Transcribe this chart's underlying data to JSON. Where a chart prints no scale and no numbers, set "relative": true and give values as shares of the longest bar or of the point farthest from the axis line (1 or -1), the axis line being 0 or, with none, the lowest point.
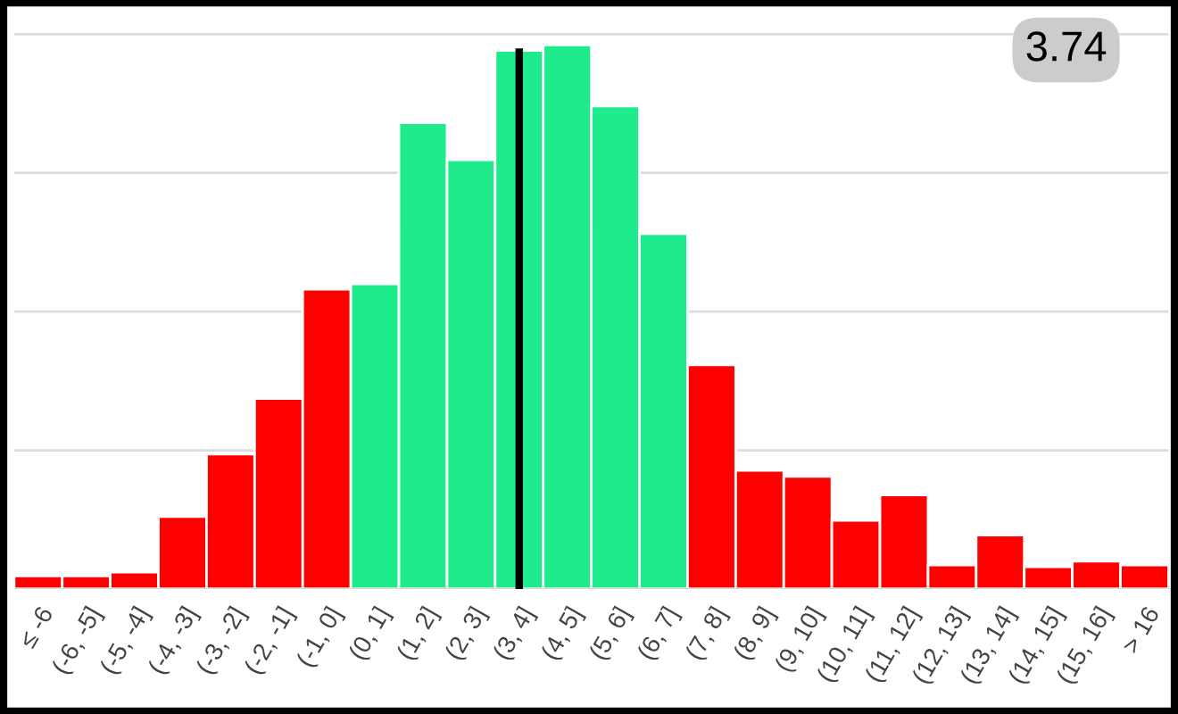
{
  "chart_data": {
    "type": "bar",
    "relative": true,
    "grid": "y",
    "categories": [
      "≤ -6",
      "(-6, -5]",
      "(-5, -4]",
      "(-4, -3]",
      "(-3, -2]",
      "(-2, -1]",
      "(-1, 0]",
      "(0, 1]",
      "(1, 2]",
      "(2, 3]",
      "(3, 4]",
      "(4, 5]",
      "(5, 6]",
      "(6, 7]",
      "(7, 8]",
      "(8, 9]",
      "(9, 10]",
      "(10, 11]",
      "(11, 12]",
      "(12, 13]",
      "(13, 14]",
      "(14, 15]",
      "(15, 16]",
      "> 16"
    ],
    "values": [
      0.024,
      0.024,
      0.031,
      0.133,
      0.248,
      0.35,
      0.551,
      0.561,
      0.857,
      0.789,
      0.99,
      1,
      0.888,
      0.653,
      0.412,
      0.218,
      0.207,
      0.126,
      0.173,
      0.044,
      0.099,
      0.041,
      0.051,
      0.044
    ],
    "colors": [
      "#ff0000",
      "#ff0000",
      "#ff0000",
      "#ff0000",
      "#ff0000",
      "#ff0000",
      "#ff0000",
      "#1eeb8c",
      "#1eeb8c",
      "#1eeb8c",
      "#1eeb8c",
      "#1eeb8c",
      "#1eeb8c",
      "#1eeb8c",
      "#ff0000",
      "#ff0000",
      "#ff0000",
      "#ff0000",
      "#ff0000",
      "#ff0000",
      "#ff0000",
      "#ff0000",
      "#ff0000",
      "#ff0000"
    ],
    "ref_lines": [
      {
        "axis": "x",
        "value": "(3, 4]",
        "color": "#000000"
      }
    ],
    "annotations": [
      "3.74"
    ]
  }
}
